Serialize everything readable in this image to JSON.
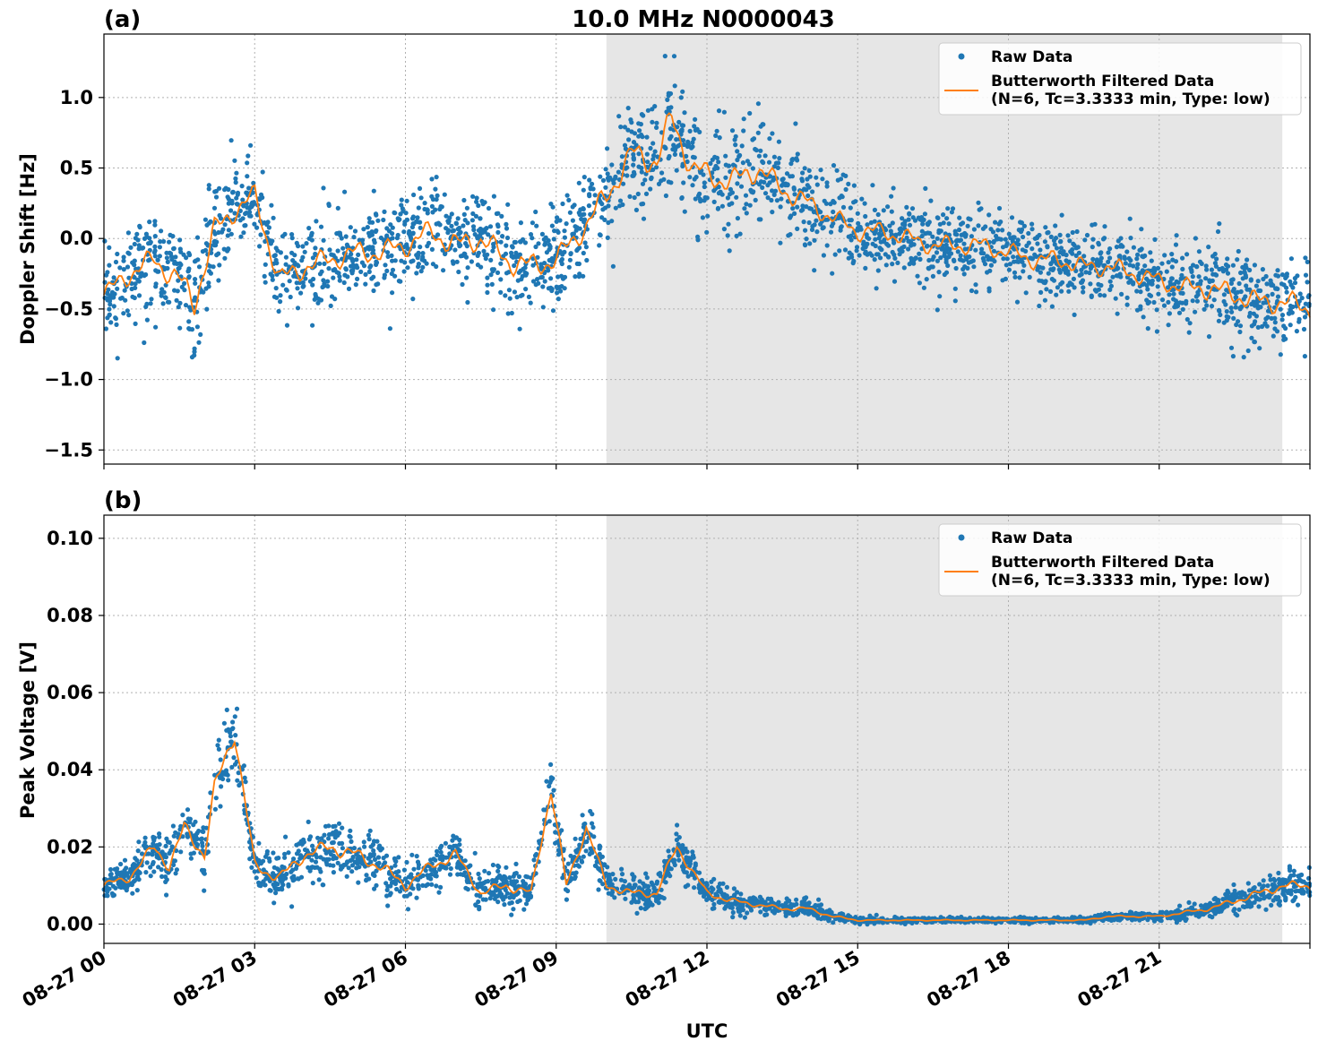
{
  "figure": {
    "title": "10.0 MHz N0000043",
    "xlabel": "UTC",
    "x_ticks": [
      "08-27 00",
      "08-27 03",
      "08-27 06",
      "08-27 09",
      "08-27 12",
      "08-27 15",
      "08-27 18",
      "08-27 21"
    ],
    "colors": {
      "raw": "#1f77b4",
      "filtered": "#ff7f0e",
      "shade": "#e6e6e6",
      "grid": "#b0b0b0"
    }
  },
  "chart_data": [
    {
      "type": "scatter",
      "panel_label": "(a)",
      "ylabel": "Doppler Shift [Hz]",
      "x_unit": "hours UTC on 08-27",
      "xlim": [
        0,
        24
      ],
      "ylim": [
        -1.6,
        1.45
      ],
      "y_ticks": [
        "1.0",
        "0.5",
        "0.0",
        "−0.5",
        "−1.0",
        "−1.5"
      ],
      "y_tick_values": [
        1.0,
        0.5,
        0.0,
        -0.5,
        -1.0,
        -1.5
      ],
      "grid": true,
      "legend_position": "top-right",
      "shaded_interval": [
        10,
        23.45
      ],
      "series": [
        {
          "name": "Raw Data",
          "marker": "point",
          "x": [
            0,
            0.5,
            1,
            1.5,
            1.8,
            2.2,
            2.6,
            3.0,
            3.5,
            4.0,
            4.5,
            5.0,
            5.5,
            6.0,
            6.5,
            7.0,
            7.5,
            8.0,
            8.5,
            9.0,
            9.5,
            10.0,
            10.5,
            11.0,
            11.3,
            11.7,
            12.0,
            12.5,
            13.0,
            13.5,
            14.0,
            14.5,
            15.0,
            15.5,
            16.0,
            16.5,
            17.0,
            17.5,
            18.0,
            18.5,
            19.0,
            19.5,
            20.0,
            20.5,
            21.0,
            21.5,
            22.0,
            22.5,
            23.0,
            23.5,
            24.0
          ],
          "y": [
            -0.4,
            -0.25,
            -0.15,
            -0.3,
            -0.45,
            0.05,
            0.2,
            0.3,
            -0.3,
            -0.2,
            -0.15,
            -0.1,
            -0.1,
            -0.05,
            0.05,
            -0.05,
            0.0,
            -0.15,
            -0.2,
            -0.15,
            0.05,
            0.3,
            0.6,
            0.55,
            0.85,
            0.5,
            0.45,
            0.4,
            0.5,
            0.35,
            0.25,
            0.15,
            0.05,
            0.05,
            0.0,
            -0.05,
            -0.05,
            -0.05,
            -0.1,
            -0.15,
            -0.15,
            -0.2,
            -0.2,
            -0.25,
            -0.3,
            -0.35,
            -0.35,
            -0.4,
            -0.45,
            -0.45,
            -0.5
          ],
          "spread": [
            0.25,
            0.3,
            0.3,
            0.35,
            0.4,
            0.35,
            0.3,
            0.3,
            0.35,
            0.3,
            0.3,
            0.3,
            0.3,
            0.3,
            0.3,
            0.35,
            0.3,
            0.35,
            0.35,
            0.3,
            0.3,
            0.35,
            0.35,
            0.4,
            0.4,
            0.35,
            0.35,
            0.35,
            0.35,
            0.3,
            0.3,
            0.25,
            0.25,
            0.25,
            0.25,
            0.25,
            0.25,
            0.25,
            0.25,
            0.25,
            0.25,
            0.25,
            0.25,
            0.25,
            0.25,
            0.25,
            0.3,
            0.3,
            0.3,
            0.3,
            0.3
          ]
        },
        {
          "name": "Butterworth Filtered Data\n(N=6, Tc=3.3333 min, Type: low)",
          "marker": "line",
          "x": [
            0,
            0.5,
            1,
            1.5,
            1.8,
            2.2,
            2.6,
            3.0,
            3.5,
            4.0,
            4.5,
            5.0,
            5.5,
            6.0,
            6.5,
            7.0,
            7.5,
            8.0,
            8.5,
            9.0,
            9.5,
            10.0,
            10.5,
            11.0,
            11.3,
            11.7,
            12.0,
            12.5,
            13.0,
            13.5,
            14.0,
            14.5,
            15.0,
            15.5,
            16.0,
            16.5,
            17.0,
            17.5,
            18.0,
            18.5,
            19.0,
            19.5,
            20.0,
            20.5,
            21.0,
            21.5,
            22.0,
            22.5,
            23.0,
            23.5,
            24.0
          ],
          "y": [
            -0.4,
            -0.25,
            -0.15,
            -0.3,
            -0.45,
            0.05,
            0.2,
            0.3,
            -0.3,
            -0.2,
            -0.15,
            -0.1,
            -0.1,
            -0.05,
            0.05,
            -0.05,
            0.0,
            -0.15,
            -0.2,
            -0.15,
            0.05,
            0.3,
            0.6,
            0.55,
            0.85,
            0.5,
            0.45,
            0.4,
            0.5,
            0.35,
            0.25,
            0.15,
            0.05,
            0.05,
            0.0,
            -0.05,
            -0.05,
            -0.05,
            -0.1,
            -0.15,
            -0.15,
            -0.2,
            -0.2,
            -0.25,
            -0.3,
            -0.35,
            -0.35,
            -0.4,
            -0.45,
            -0.45,
            -0.5
          ]
        }
      ]
    },
    {
      "type": "scatter",
      "panel_label": "(b)",
      "ylabel": "Peak Voltage [V]",
      "x_unit": "hours UTC on 08-27",
      "xlim": [
        0,
        24
      ],
      "ylim": [
        -0.005,
        0.106
      ],
      "y_ticks": [
        "0.10",
        "0.08",
        "0.06",
        "0.04",
        "0.02",
        "0.00"
      ],
      "y_tick_values": [
        0.1,
        0.08,
        0.06,
        0.04,
        0.02,
        0.0
      ],
      "grid": true,
      "legend_position": "top-right",
      "shaded_interval": [
        10,
        23.45
      ],
      "series": [
        {
          "name": "Raw Data",
          "marker": "point",
          "x": [
            0,
            0.5,
            1.0,
            1.3,
            1.6,
            2.0,
            2.2,
            2.6,
            3.0,
            3.5,
            4.0,
            4.5,
            5.0,
            5.5,
            6.0,
            6.5,
            7.0,
            7.5,
            8.0,
            8.5,
            8.9,
            9.2,
            9.6,
            10.0,
            10.5,
            11.0,
            11.4,
            12.0,
            12.5,
            13.0,
            13.5,
            14.0,
            14.5,
            15.0,
            15.5,
            16.0,
            16.5,
            17.0,
            17.5,
            18.0,
            18.5,
            19.0,
            19.5,
            20.0,
            20.5,
            21.0,
            21.5,
            22.0,
            22.5,
            23.0,
            23.5,
            24.0
          ],
          "y": [
            0.01,
            0.012,
            0.02,
            0.015,
            0.025,
            0.018,
            0.035,
            0.05,
            0.015,
            0.012,
            0.018,
            0.02,
            0.018,
            0.015,
            0.01,
            0.015,
            0.018,
            0.008,
            0.01,
            0.008,
            0.035,
            0.01,
            0.025,
            0.01,
            0.008,
            0.008,
            0.02,
            0.008,
            0.006,
            0.005,
            0.004,
            0.004,
            0.002,
            0.001,
            0.001,
            0.001,
            0.001,
            0.001,
            0.001,
            0.001,
            0.001,
            0.001,
            0.001,
            0.002,
            0.002,
            0.002,
            0.003,
            0.004,
            0.006,
            0.008,
            0.01,
            0.01
          ],
          "spread": [
            0.004,
            0.004,
            0.006,
            0.006,
            0.007,
            0.007,
            0.008,
            0.01,
            0.006,
            0.006,
            0.006,
            0.007,
            0.007,
            0.006,
            0.005,
            0.005,
            0.006,
            0.004,
            0.005,
            0.004,
            0.008,
            0.004,
            0.006,
            0.004,
            0.004,
            0.004,
            0.005,
            0.003,
            0.003,
            0.002,
            0.002,
            0.002,
            0.0012,
            0.0008,
            0.0006,
            0.0006,
            0.0006,
            0.0006,
            0.0006,
            0.0006,
            0.0006,
            0.0006,
            0.0006,
            0.0008,
            0.001,
            0.001,
            0.0015,
            0.002,
            0.003,
            0.004,
            0.004,
            0.004
          ]
        },
        {
          "name": "Butterworth Filtered Data\n(N=6, Tc=3.3333 min, Type: low)",
          "marker": "line",
          "x": [
            0,
            0.5,
            1.0,
            1.3,
            1.6,
            2.0,
            2.2,
            2.6,
            3.0,
            3.5,
            4.0,
            4.5,
            5.0,
            5.5,
            6.0,
            6.5,
            7.0,
            7.5,
            8.0,
            8.5,
            8.9,
            9.2,
            9.6,
            10.0,
            10.5,
            11.0,
            11.4,
            12.0,
            12.5,
            13.0,
            13.5,
            14.0,
            14.5,
            15.0,
            15.5,
            16.0,
            16.5,
            17.0,
            17.5,
            18.0,
            18.5,
            19.0,
            19.5,
            20.0,
            20.5,
            21.0,
            21.5,
            22.0,
            22.5,
            23.0,
            23.5,
            24.0
          ],
          "y": [
            0.01,
            0.012,
            0.02,
            0.015,
            0.025,
            0.018,
            0.035,
            0.05,
            0.015,
            0.012,
            0.018,
            0.02,
            0.018,
            0.015,
            0.01,
            0.015,
            0.018,
            0.008,
            0.01,
            0.008,
            0.035,
            0.01,
            0.025,
            0.01,
            0.008,
            0.008,
            0.02,
            0.008,
            0.006,
            0.005,
            0.004,
            0.004,
            0.002,
            0.001,
            0.001,
            0.001,
            0.001,
            0.001,
            0.001,
            0.001,
            0.001,
            0.001,
            0.001,
            0.002,
            0.002,
            0.002,
            0.003,
            0.004,
            0.006,
            0.008,
            0.01,
            0.01
          ]
        }
      ]
    }
  ]
}
